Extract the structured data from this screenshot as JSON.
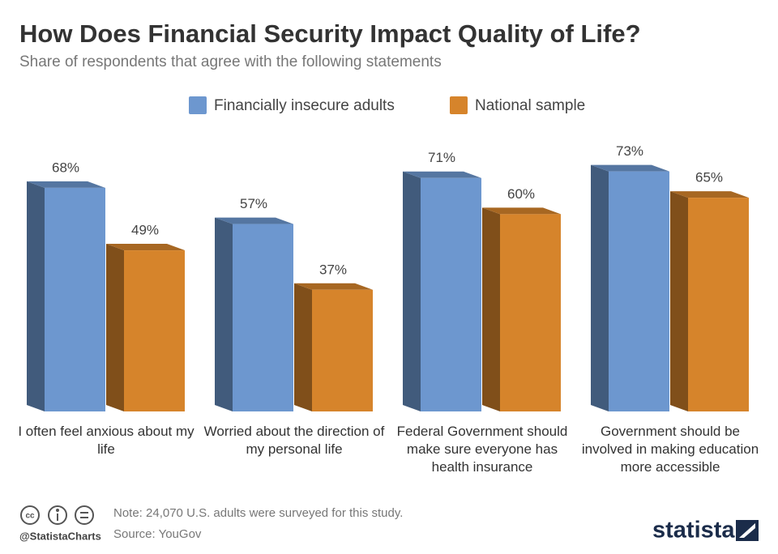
{
  "chart_data": {
    "type": "bar3d",
    "title": "How Does Financial Security Impact Quality of Life?",
    "subtitle": "Share of respondents that agree with the following statements",
    "categories": [
      "I often feel anxious about my life",
      "Worried about the direction of my personal life",
      "Federal Government should make sure everyone has health insurance",
      "Government should be involved in making education more accessible"
    ],
    "series": [
      {
        "name": "Financially insecure adults",
        "color": "#6d97cf",
        "values": [
          68,
          57,
          71,
          73
        ],
        "value_labels": [
          "68%",
          "57%",
          "71%",
          "73%"
        ]
      },
      {
        "name": "National sample",
        "color": "#d6842b",
        "values": [
          49,
          37,
          60,
          65
        ],
        "value_labels": [
          "49%",
          "37%",
          "60%",
          "65%"
        ]
      }
    ],
    "note": "Note: 24,070 U.S. adults were surveyed for this study.",
    "source": "Source: YouGov",
    "credit": "@StatistaCharts",
    "brand": "statista"
  }
}
